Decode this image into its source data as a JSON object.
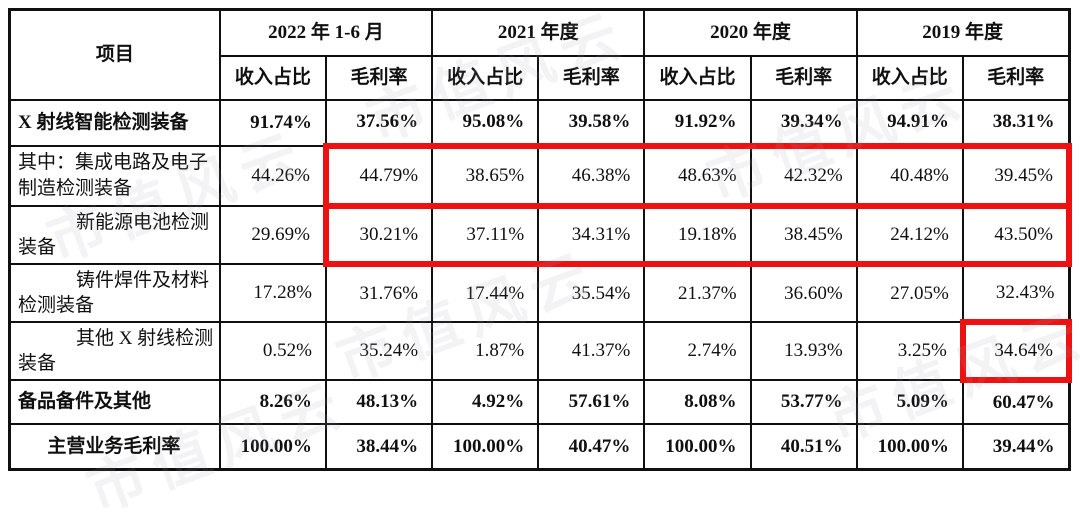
{
  "watermark": {
    "text": "市值风云"
  },
  "table": {
    "corner_header": "项目",
    "year_groups": [
      {
        "label": "2022 年 1-6 月"
      },
      {
        "label": "2021 年度"
      },
      {
        "label": "2020 年度"
      },
      {
        "label": "2019 年度"
      }
    ],
    "sub_headers": {
      "revenue_share": "收入占比",
      "gross_margin": "毛利率"
    },
    "rows": [
      {
        "label": "X 射线智能检测装备",
        "bold": true,
        "indent": false,
        "center": false,
        "values": [
          "91.74%",
          "37.56%",
          "95.08%",
          "39.58%",
          "91.92%",
          "39.34%",
          "94.91%",
          "38.31%"
        ]
      },
      {
        "label": "其中：集成电路及电子制造检测装备",
        "bold": false,
        "indent": false,
        "center": false,
        "values": [
          "44.26%",
          "44.79%",
          "38.65%",
          "46.38%",
          "48.63%",
          "42.32%",
          "40.48%",
          "39.45%"
        ],
        "highlight": {
          "from": 1,
          "to": 7
        }
      },
      {
        "label": "新能源电池检测装备",
        "bold": false,
        "indent": true,
        "center": false,
        "values": [
          "29.69%",
          "30.21%",
          "37.11%",
          "34.31%",
          "19.18%",
          "38.45%",
          "24.12%",
          "43.50%"
        ],
        "highlight": {
          "from": 1,
          "to": 7
        }
      },
      {
        "label": "铸件焊件及材料检测装备",
        "bold": false,
        "indent": true,
        "center": false,
        "values": [
          "17.28%",
          "31.76%",
          "17.44%",
          "35.54%",
          "21.37%",
          "36.60%",
          "27.05%",
          "32.43%"
        ]
      },
      {
        "label": "其他 X 射线检测装备",
        "bold": false,
        "indent": true,
        "center": false,
        "values": [
          "0.52%",
          "35.24%",
          "1.87%",
          "41.37%",
          "2.74%",
          "13.93%",
          "3.25%",
          "34.64%"
        ],
        "highlight": {
          "from": 7,
          "to": 7
        }
      },
      {
        "label": "备品备件及其他",
        "bold": true,
        "indent": false,
        "center": false,
        "values": [
          "8.26%",
          "48.13%",
          "4.92%",
          "57.61%",
          "8.08%",
          "53.77%",
          "5.09%",
          "60.47%"
        ]
      },
      {
        "label": "主营业务毛利率",
        "bold": true,
        "indent": false,
        "center": true,
        "values": [
          "100.00%",
          "38.44%",
          "100.00%",
          "40.47%",
          "100.00%",
          "40.51%",
          "100.00%",
          "39.44%"
        ]
      }
    ],
    "colors": {
      "highlight_red": "#ee1111",
      "border_black": "#101010"
    }
  }
}
